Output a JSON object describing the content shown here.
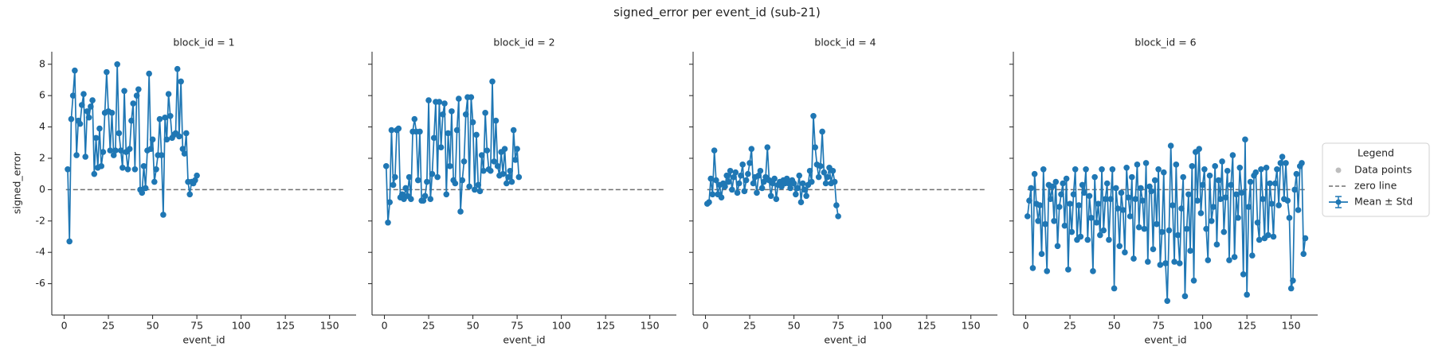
{
  "chart_data": {
    "type": "line",
    "title": "signed_error per event_id (sub-21)",
    "xlabel": "event_id",
    "ylabel": "signed_error",
    "xlim": [
      -7,
      165
    ],
    "xticks": [
      0,
      25,
      50,
      75,
      100,
      125,
      150
    ],
    "ylim": [
      -8,
      8.8
    ],
    "yticks": [
      -6,
      -4,
      -2,
      0,
      2,
      4,
      6,
      8
    ],
    "color": "#1f77b4",
    "zero_line": 0,
    "zero_line_color": "#707070",
    "legend": {
      "title": "Legend",
      "position": "right",
      "entries": [
        {
          "name": "Data points",
          "color": "#bdbdbd"
        },
        {
          "name": "zero line",
          "color": "#707070"
        },
        {
          "name": "Mean ± Std",
          "color": "#1f77b4"
        }
      ]
    },
    "panels": [
      {
        "title": "block_id = 1",
        "x": [
          2,
          3,
          4,
          5,
          6,
          7,
          8,
          9,
          10,
          11,
          12,
          13,
          14,
          15,
          16,
          17,
          18,
          19,
          20,
          21,
          22,
          23,
          24,
          25,
          26,
          27,
          28,
          29,
          30,
          31,
          32,
          33,
          34,
          35,
          36,
          37,
          38,
          39,
          40,
          41,
          42,
          43,
          44,
          45,
          46,
          47,
          48,
          49,
          50,
          51,
          52,
          53,
          54,
          55,
          56,
          57,
          58,
          59,
          60,
          61,
          62,
          63,
          64,
          65,
          66,
          67,
          68,
          69,
          70,
          71,
          72,
          73,
          74,
          75
        ],
        "values": [
          1.3,
          -3.3,
          4.5,
          6.0,
          7.6,
          2.2,
          4.4,
          4.2,
          5.4,
          6.1,
          2.1,
          5.0,
          4.6,
          5.3,
          5.7,
          1.0,
          3.3,
          1.4,
          3.9,
          1.5,
          2.4,
          4.9,
          7.5,
          5.0,
          2.5,
          4.9,
          2.2,
          2.5,
          8.0,
          3.6,
          2.5,
          1.4,
          6.3,
          2.4,
          1.3,
          2.6,
          4.4,
          5.5,
          1.3,
          6.0,
          6.4,
          0.0,
          -0.2,
          1.5,
          0.1,
          2.5,
          7.4,
          2.6,
          3.2,
          0.5,
          1.3,
          2.2,
          4.5,
          2.2,
          -1.6,
          4.6,
          3.2,
          6.1,
          4.7,
          3.3,
          3.5,
          3.6,
          7.7,
          3.4,
          6.9,
          2.6,
          2.3,
          3.6,
          0.5,
          -0.3,
          0.5,
          0.4,
          0.6,
          0.9
        ]
      },
      {
        "title": "block_id = 2",
        "x": [
          1,
          2,
          3,
          4,
          5,
          6,
          7,
          8,
          9,
          10,
          11,
          12,
          13,
          14,
          15,
          16,
          17,
          18,
          19,
          20,
          21,
          22,
          23,
          24,
          25,
          26,
          27,
          28,
          29,
          30,
          31,
          32,
          33,
          34,
          35,
          36,
          37,
          38,
          39,
          40,
          41,
          42,
          43,
          44,
          45,
          46,
          47,
          48,
          49,
          50,
          51,
          52,
          53,
          54,
          55,
          56,
          57,
          58,
          59,
          60,
          61,
          62,
          63,
          64,
          65,
          66,
          67,
          68,
          69,
          70,
          71,
          72,
          73,
          74,
          75,
          76
        ],
        "values": [
          1.5,
          -2.1,
          -0.8,
          3.8,
          0.3,
          0.8,
          3.8,
          3.9,
          -0.5,
          -0.3,
          -0.6,
          0.1,
          -0.4,
          0.8,
          -0.6,
          3.7,
          4.5,
          3.7,
          0.6,
          3.7,
          -0.7,
          -0.7,
          -0.4,
          0.5,
          5.7,
          -0.6,
          1.0,
          3.3,
          5.6,
          0.8,
          5.6,
          2.7,
          4.8,
          5.5,
          -0.3,
          3.6,
          1.5,
          5.0,
          0.6,
          0.4,
          3.8,
          5.8,
          -1.4,
          0.6,
          1.8,
          4.8,
          5.9,
          0.2,
          5.9,
          4.3,
          0.0,
          3.5,
          0.3,
          -0.1,
          2.2,
          1.2,
          4.9,
          2.5,
          1.3,
          1.2,
          6.9,
          1.8,
          4.4,
          1.5,
          0.9,
          2.4,
          1.0,
          2.6,
          0.4,
          0.8,
          1.2,
          0.5,
          3.8,
          1.9,
          2.6,
          0.8
        ]
      },
      {
        "title": "block_id = 4",
        "x": [
          1,
          2,
          3,
          4,
          5,
          6,
          7,
          8,
          9,
          10,
          11,
          12,
          13,
          14,
          15,
          16,
          17,
          18,
          19,
          20,
          21,
          22,
          23,
          24,
          25,
          26,
          27,
          28,
          29,
          30,
          31,
          32,
          33,
          34,
          35,
          36,
          37,
          38,
          39,
          40,
          41,
          42,
          43,
          44,
          45,
          46,
          47,
          48,
          49,
          50,
          51,
          52,
          53,
          54,
          55,
          56,
          57,
          58,
          59,
          60,
          61,
          62,
          63,
          64,
          65,
          66,
          67,
          68,
          69,
          70,
          71,
          72,
          73,
          74,
          75
        ],
        "values": [
          -0.9,
          -0.8,
          0.7,
          -0.3,
          2.5,
          0.6,
          -0.3,
          0.3,
          -0.5,
          0.4,
          0.2,
          0.9,
          0.5,
          1.2,
          0.0,
          0.8,
          1.1,
          -0.2,
          0.4,
          0.9,
          1.6,
          -0.1,
          0.6,
          1.0,
          1.7,
          2.6,
          0.4,
          0.8,
          -0.2,
          0.9,
          1.2,
          0.1,
          0.5,
          0.8,
          2.7,
          0.6,
          -0.4,
          0.4,
          0.7,
          -0.6,
          0.3,
          0.5,
          0.2,
          0.6,
          0.4,
          0.7,
          0.4,
          0.1,
          0.6,
          0.4,
          -0.3,
          0.1,
          0.9,
          -0.8,
          0.4,
          0.0,
          -0.4,
          0.3,
          1.2,
          0.5,
          4.7,
          2.7,
          1.6,
          0.8,
          1.5,
          3.7,
          1.1,
          0.4,
          0.8,
          1.4,
          0.4,
          1.2,
          0.5,
          -1.0,
          -1.7
        ]
      },
      {
        "title": "block_id = 6",
        "x": [
          1,
          2,
          3,
          4,
          5,
          6,
          7,
          8,
          9,
          10,
          11,
          12,
          13,
          14,
          15,
          16,
          17,
          18,
          19,
          20,
          21,
          22,
          23,
          24,
          25,
          26,
          27,
          28,
          29,
          30,
          31,
          32,
          33,
          34,
          35,
          36,
          37,
          38,
          39,
          40,
          41,
          42,
          43,
          44,
          45,
          46,
          47,
          48,
          49,
          50,
          51,
          52,
          53,
          54,
          55,
          56,
          57,
          58,
          59,
          60,
          61,
          62,
          63,
          64,
          65,
          66,
          67,
          68,
          69,
          70,
          71,
          72,
          73,
          74,
          75,
          76,
          77,
          78,
          79,
          80,
          81,
          82,
          83,
          84,
          85,
          86,
          87,
          88,
          89,
          90,
          91,
          92,
          93,
          94,
          95,
          96,
          97,
          98,
          99,
          100,
          101,
          102,
          103,
          104,
          105,
          106,
          107,
          108,
          109,
          110,
          111,
          112,
          113,
          114,
          115,
          116,
          117,
          118,
          119,
          120,
          121,
          122,
          123,
          124,
          125,
          126,
          127,
          128,
          129,
          130,
          131,
          132,
          133,
          134,
          135,
          136,
          137,
          138,
          139,
          140,
          141,
          142,
          143,
          144,
          145,
          146,
          147,
          148,
          149,
          150,
          151,
          152,
          153,
          154,
          155,
          156,
          157,
          158
        ],
        "values": [
          -1.7,
          -0.7,
          0.1,
          -5.0,
          1.0,
          -0.9,
          -2.0,
          -1.0,
          -4.1,
          1.3,
          -2.2,
          -5.2,
          0.3,
          -0.6,
          0.2,
          -2.0,
          0.5,
          -3.6,
          -1.1,
          -0.3,
          0.4,
          -2.3,
          0.7,
          -5.1,
          -0.9,
          -2.7,
          -0.3,
          1.3,
          -3.2,
          -1.0,
          -3.0,
          0.3,
          -0.2,
          1.3,
          -3.2,
          -0.4,
          -1.8,
          -5.2,
          0.8,
          -2.1,
          -0.9,
          -2.9,
          1.3,
          -2.6,
          -0.6,
          0.4,
          -3.2,
          -0.6,
          1.3,
          -6.3,
          0.1,
          -1.2,
          -3.6,
          -0.2,
          -1.3,
          -4.0,
          1.4,
          -0.5,
          -1.7,
          0.8,
          -4.4,
          -0.6,
          1.6,
          -2.4,
          0.1,
          -0.7,
          -2.5,
          1.7,
          -4.6,
          0.2,
          -0.1,
          -3.8,
          0.6,
          -2.2,
          1.3,
          -4.8,
          -2.7,
          1.1,
          -4.7,
          -7.1,
          -2.6,
          2.8,
          -1.0,
          -4.6,
          1.6,
          -2.9,
          -4.7,
          -1.2,
          0.8,
          -6.8,
          -2.5,
          -0.3,
          -3.9,
          1.5,
          -5.8,
          2.4,
          -0.7,
          2.6,
          -1.5,
          0.3,
          1.3,
          -2.5,
          -4.5,
          0.9,
          -2.0,
          -1.1,
          1.5,
          -3.5,
          0.6,
          -0.6,
          1.8,
          -2.7,
          -0.5,
          1.2,
          -4.5,
          0.3,
          2.2,
          -4.3,
          -0.3,
          -1.8,
          1.4,
          -0.2,
          -5.4,
          3.2,
          -6.7,
          -1.1,
          0.5,
          -4.2,
          0.9,
          1.1,
          -2.1,
          -3.2,
          1.3,
          -0.6,
          -3.1,
          1.4,
          -2.9,
          0.4,
          -0.9,
          -3.0,
          0.4,
          1.3,
          -1.0,
          1.7,
          2.1,
          -0.6,
          1.7,
          -0.7,
          -1.8,
          -6.3,
          -5.8,
          0.0,
          1.0,
          -1.3,
          1.5,
          1.7,
          -4.1,
          -3.1
        ]
      }
    ]
  }
}
